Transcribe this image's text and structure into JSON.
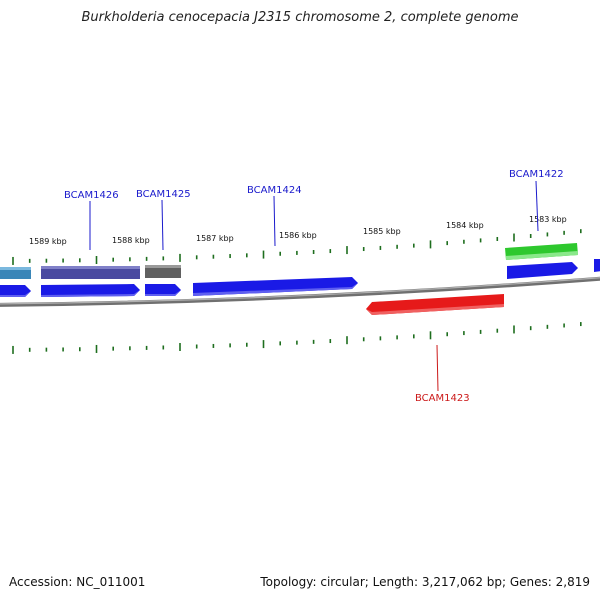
{
  "title": "Burkholderia cenocepacia J2315 chromosome 2, complete genome",
  "footer": {
    "accession": "Accession: NC_011001",
    "summary": "Topology: circular; Length: 3,217,062 bp; Genes: 2,819"
  },
  "colors": {
    "backbone": "#8a8a8a",
    "tick": "#1e6e1e",
    "forward_gene": "#1a1ae6",
    "reverse_gene": "#e61a1a",
    "label_forward": "#1a1acc",
    "label_reverse": "#cc1a1a"
  },
  "kbp_labels": [
    "1589 kbp",
    "1588 kbp",
    "1587 kbp",
    "1586 kbp",
    "1585 kbp",
    "1584 kbp",
    "1583 kbp"
  ],
  "genes": [
    {
      "label": "BCAM1426",
      "strand": "+"
    },
    {
      "label": "BCAM1425",
      "strand": "+"
    },
    {
      "label": "BCAM1424",
      "strand": "+"
    },
    {
      "label": "BCAM1422",
      "strand": "+"
    },
    {
      "label": "BCAM1423",
      "strand": "-"
    }
  ]
}
